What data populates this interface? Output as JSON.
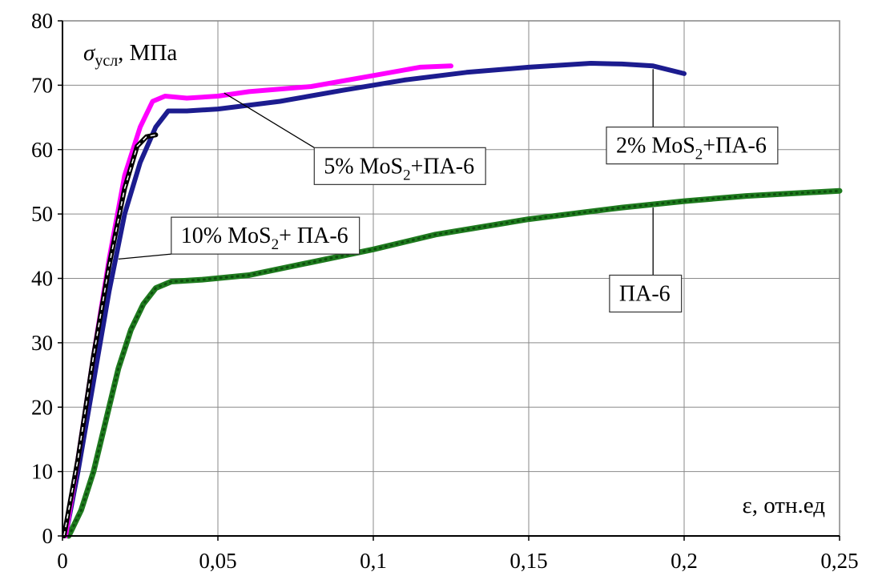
{
  "chart_data": {
    "type": "line",
    "xlabel": "ε, отн.ед",
    "ylabel": "σусл, МПа",
    "ylabel_parts": {
      "symbol": "σ",
      "sub": "усл",
      "unit": ", МПа"
    },
    "xlim": [
      0,
      0.25
    ],
    "ylim": [
      0,
      80
    ],
    "grid": true,
    "x_ticks": [
      0,
      0.05,
      0.1,
      0.15,
      0.2,
      0.25
    ],
    "x_tick_labels": [
      "0",
      "0,05",
      "0,1",
      "0,15",
      "0,2",
      "0,25"
    ],
    "y_ticks": [
      0,
      10,
      20,
      30,
      40,
      50,
      60,
      70,
      80
    ],
    "y_tick_labels": [
      "0",
      "10",
      "20",
      "30",
      "40",
      "50",
      "60",
      "70",
      "80"
    ],
    "series": [
      {
        "name": "ПА-6",
        "label_parts": [
          "ПА-6"
        ],
        "color": "#1e7a1e",
        "dotted": true,
        "points": [
          [
            0.002,
            0
          ],
          [
            0.006,
            4
          ],
          [
            0.01,
            10
          ],
          [
            0.014,
            18
          ],
          [
            0.018,
            26
          ],
          [
            0.022,
            32
          ],
          [
            0.026,
            36
          ],
          [
            0.03,
            38.5
          ],
          [
            0.035,
            39.5
          ],
          [
            0.045,
            39.8
          ],
          [
            0.06,
            40.5
          ],
          [
            0.08,
            42.5
          ],
          [
            0.1,
            44.5
          ],
          [
            0.12,
            46.8
          ],
          [
            0.15,
            49.2
          ],
          [
            0.18,
            51
          ],
          [
            0.2,
            52
          ],
          [
            0.22,
            52.8
          ],
          [
            0.25,
            53.6
          ]
        ],
        "label_anchor": [
          0.19,
          51
        ],
        "label_box": [
          0.176,
          40.5
        ]
      },
      {
        "name": "2% MoS2+ПА-6",
        "label_parts": [
          "2% MoS",
          "2",
          "+ПА-6"
        ],
        "color": "#1c1c8f",
        "dotted": false,
        "points": [
          [
            0.001,
            0
          ],
          [
            0.005,
            10
          ],
          [
            0.01,
            24
          ],
          [
            0.015,
            38
          ],
          [
            0.02,
            50
          ],
          [
            0.025,
            58
          ],
          [
            0.03,
            63.5
          ],
          [
            0.034,
            66
          ],
          [
            0.04,
            66
          ],
          [
            0.05,
            66.3
          ],
          [
            0.07,
            67.5
          ],
          [
            0.09,
            69.2
          ],
          [
            0.11,
            70.8
          ],
          [
            0.13,
            72
          ],
          [
            0.15,
            72.8
          ],
          [
            0.17,
            73.4
          ],
          [
            0.18,
            73.3
          ],
          [
            0.19,
            73
          ],
          [
            0.2,
            71.8
          ]
        ],
        "label_anchor": [
          0.19,
          72.5
        ],
        "label_box": [
          0.175,
          63.5
        ]
      },
      {
        "name": "5%  MoS2+ПА-6",
        "label_parts": [
          "5%  MoS",
          "2",
          "+ПА-6"
        ],
        "color": "#ff00ff",
        "dotted": false,
        "points": [
          [
            0.001,
            0
          ],
          [
            0.005,
            12
          ],
          [
            0.01,
            28
          ],
          [
            0.015,
            43
          ],
          [
            0.02,
            56
          ],
          [
            0.025,
            63.5
          ],
          [
            0.029,
            67.5
          ],
          [
            0.033,
            68.3
          ],
          [
            0.04,
            68
          ],
          [
            0.05,
            68.3
          ],
          [
            0.06,
            69
          ],
          [
            0.08,
            69.8
          ],
          [
            0.1,
            71.5
          ],
          [
            0.115,
            72.8
          ],
          [
            0.125,
            73
          ]
        ],
        "label_anchor": [
          0.052,
          68.8
        ],
        "label_box": [
          0.081,
          60.3
        ]
      },
      {
        "name": "10% MoS2+ ПА-6",
        "label_parts": [
          "10% MoS",
          "2",
          "+ ПА-6"
        ],
        "color": "#000000",
        "dotted": false,
        "dashed": true,
        "points": [
          [
            0.0005,
            0
          ],
          [
            0.005,
            12
          ],
          [
            0.01,
            28
          ],
          [
            0.015,
            42
          ],
          [
            0.02,
            54
          ],
          [
            0.024,
            60.5
          ],
          [
            0.027,
            62
          ],
          [
            0.03,
            62.3
          ]
        ],
        "label_anchor": [
          0.018,
          43
        ],
        "label_box": [
          0.035,
          49.5
        ]
      }
    ]
  }
}
